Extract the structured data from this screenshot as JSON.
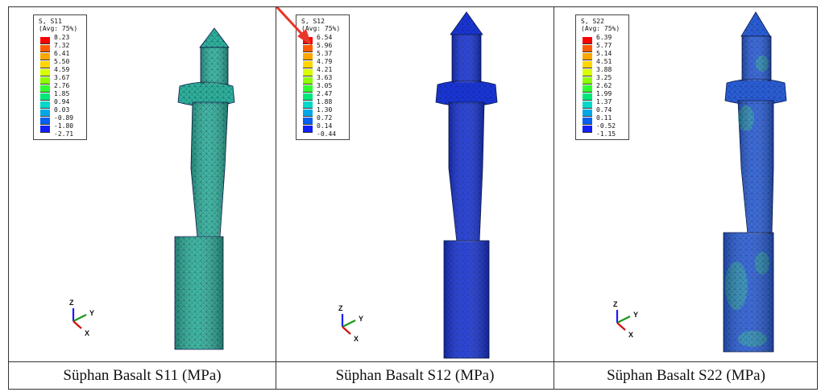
{
  "panels": [
    {
      "legend": {
        "title": "S, S11",
        "subtitle": "(Avg: 75%)",
        "values": [
          "8.23",
          "7.32",
          "6.41",
          "5.50",
          "4.59",
          "3.67",
          "2.76",
          "1.85",
          "0.94",
          "0.03",
          "-0.89",
          "-1.80",
          "-2.71"
        ]
      },
      "caption": "Süphan Basalt S11 (MPa)",
      "axes": {
        "z": "Z",
        "y": "Y",
        "x": "X"
      }
    },
    {
      "legend": {
        "title": "S, S12",
        "subtitle": "(Avg: 75%)",
        "values": [
          "6.54",
          "5.96",
          "5.37",
          "4.79",
          "4.21",
          "3.63",
          "3.05",
          "2.47",
          "1.88",
          "1.30",
          "0.72",
          "0.14",
          "-0.44"
        ]
      },
      "caption": "Süphan Basalt S12 (MPa)",
      "axes": {
        "z": "Z",
        "y": "Y",
        "x": "X"
      }
    },
    {
      "legend": {
        "title": "S, S22",
        "subtitle": "(Avg: 75%)",
        "values": [
          "6.39",
          "5.77",
          "5.14",
          "4.51",
          "3.88",
          "3.25",
          "2.62",
          "1.99",
          "1.37",
          "0.74",
          "0.11",
          "-0.52",
          "-1.15"
        ]
      },
      "caption": "Süphan Basalt S22 (MPa)",
      "axes": {
        "z": "Z",
        "y": "Y",
        "x": "X"
      }
    }
  ],
  "colors": {
    "scale": [
      "#ff0000",
      "#ff5a00",
      "#ffa500",
      "#ffd600",
      "#d6ff00",
      "#8cff00",
      "#2eff2e",
      "#00e87a",
      "#00d8c8",
      "#00a8e8",
      "#0060f0",
      "#1020f8",
      "#0000ff"
    ],
    "arrow": "#e8362a",
    "panel_0_fill": "#2fb39a",
    "panel_1_fill": "#1a35d8",
    "panel_2_fill": "#2b5fd8"
  }
}
